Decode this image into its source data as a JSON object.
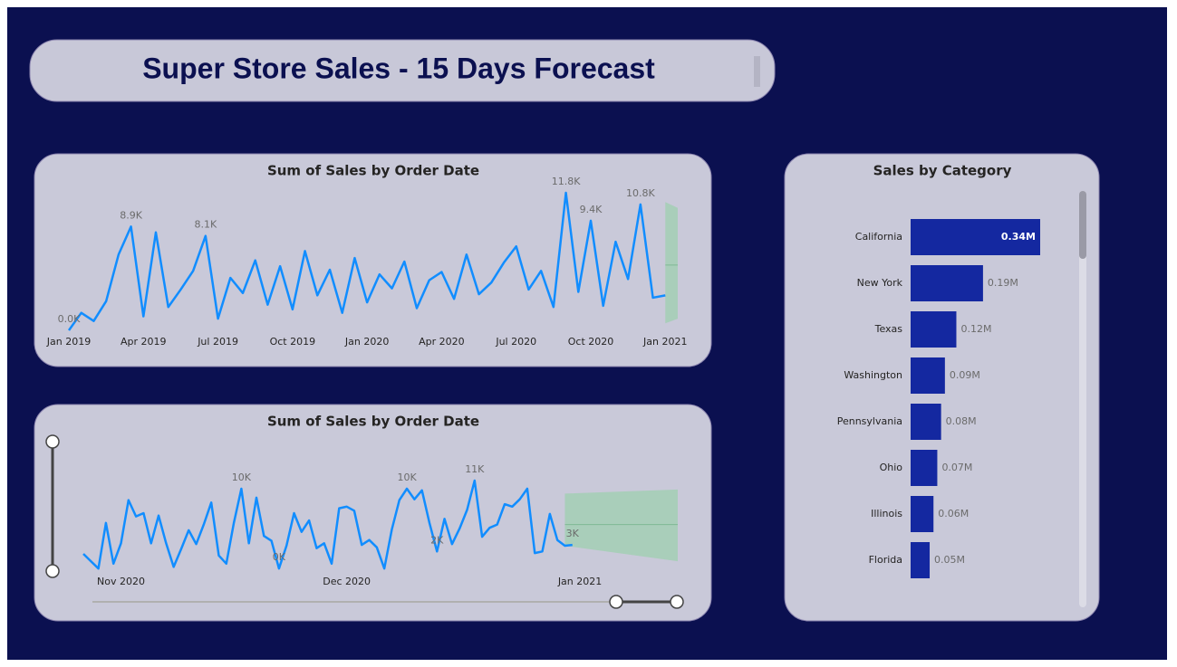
{
  "header": {
    "title": "Super Store Sales - 15 Days Forecast"
  },
  "chart_data": [
    {
      "type": "line",
      "title": "Sum of Sales by Order Date",
      "color": "#118dff",
      "x": [
        0,
        0.5,
        1,
        1.5,
        2,
        2.5,
        3,
        3.5,
        4,
        4.5,
        5,
        5.5,
        6,
        6.5,
        7,
        7.5,
        8,
        8.5,
        9,
        9.5,
        10,
        10.5,
        11,
        11.5,
        12,
        12.5,
        13,
        13.5,
        14,
        14.5,
        15,
        15.5,
        16,
        16.5,
        17,
        17.5,
        18,
        18.5,
        19,
        19.5,
        20,
        20.5,
        21,
        21.5,
        22,
        22.5,
        23,
        23.5,
        24
      ],
      "values": [
        0.0,
        1.5,
        0.8,
        2.5,
        6.5,
        8.9,
        1.2,
        8.4,
        2.0,
        3.5,
        5.1,
        8.1,
        1.0,
        4.5,
        3.2,
        6.0,
        2.2,
        5.5,
        1.8,
        6.8,
        3.0,
        5.2,
        1.5,
        6.2,
        2.4,
        4.8,
        3.6,
        5.9,
        1.9,
        4.3,
        5.0,
        2.7,
        6.5,
        3.1,
        4.1,
        5.8,
        7.2,
        3.5,
        5.1,
        2.0,
        11.8,
        3.3,
        9.4,
        2.1,
        7.6,
        4.4,
        10.8,
        2.8,
        3.0
      ],
      "value_labels": [
        "0.0K",
        null,
        null,
        null,
        null,
        "8.9K",
        null,
        null,
        null,
        null,
        null,
        "8.1K",
        null,
        null,
        null,
        null,
        null,
        null,
        null,
        null,
        null,
        null,
        null,
        null,
        null,
        null,
        null,
        null,
        null,
        null,
        null,
        null,
        null,
        null,
        null,
        null,
        null,
        null,
        null,
        null,
        "11.8K",
        null,
        "9.4K",
        null,
        null,
        null,
        "10.8K",
        null,
        null
      ],
      "xlim": [
        0,
        24.5
      ],
      "xticks": [
        {
          "value": 0,
          "label": "Jan 2019"
        },
        {
          "value": 3,
          "label": "Apr 2019"
        },
        {
          "value": 6,
          "label": "Jul 2019"
        },
        {
          "value": 9,
          "label": "Oct 2019"
        },
        {
          "value": 12,
          "label": "Jan 2020"
        },
        {
          "value": 15,
          "label": "Apr 2020"
        },
        {
          "value": 18,
          "label": "Jul 2020"
        },
        {
          "value": 21,
          "label": "Oct 2020"
        },
        {
          "value": 24,
          "label": "Jan 2021"
        }
      ],
      "forecast": {
        "color": "#a3cfb4",
        "x": [
          24,
          24.5
        ],
        "upper": [
          11.0,
          10.5
        ],
        "lower": [
          0.6,
          1.0
        ],
        "values": [
          5.6,
          5.6
        ]
      }
    },
    {
      "type": "line",
      "title": "Sum of Sales by Order Date",
      "color": "#118dff",
      "x": [
        -5,
        -4,
        -3,
        -2,
        -1,
        0,
        1,
        2,
        3,
        4,
        5,
        6,
        7,
        8,
        9,
        10,
        11,
        12,
        13,
        14,
        15,
        16,
        17,
        18,
        19,
        20,
        21,
        22,
        23,
        24,
        25,
        26,
        27,
        28,
        29,
        30,
        31,
        32,
        33,
        34,
        35,
        36,
        37,
        38,
        39,
        40,
        41,
        42,
        43,
        44,
        45,
        46,
        47,
        48,
        49,
        50,
        51,
        52,
        53,
        54,
        55,
        56,
        57,
        58,
        59,
        60
      ],
      "values": [
        2.0,
        1.1,
        0.2,
        5.8,
        0.8,
        3.3,
        8.6,
        6.6,
        7.0,
        3.3,
        6.7,
        3.3,
        0.4,
        2.6,
        4.9,
        3.2,
        5.6,
        8.3,
        1.8,
        0.8,
        5.8,
        10.0,
        3.3,
        8.9,
        4.2,
        3.6,
        0.2,
        3.0,
        7.0,
        4.7,
        6.1,
        2.7,
        3.3,
        0.8,
        7.6,
        7.8,
        7.3,
        3.1,
        3.7,
        2.8,
        0.2,
        5.0,
        8.6,
        10.0,
        8.7,
        9.8,
        5.8,
        2.3,
        6.3,
        3.2,
        5.1,
        7.4,
        11.0,
        4.1,
        5.2,
        5.6,
        8.1,
        7.8,
        8.7,
        10.0,
        2.1,
        2.3,
        6.9,
        3.7,
        3.0,
        3.1
      ],
      "value_labels": [
        null,
        null,
        null,
        null,
        null,
        null,
        null,
        null,
        null,
        null,
        null,
        null,
        null,
        null,
        null,
        null,
        null,
        null,
        null,
        null,
        null,
        "10K",
        null,
        null,
        null,
        null,
        "0K",
        null,
        null,
        null,
        null,
        null,
        null,
        null,
        null,
        null,
        null,
        null,
        null,
        null,
        null,
        null,
        null,
        "10K",
        null,
        null,
        null,
        "2K",
        null,
        null,
        null,
        null,
        "11K",
        null,
        null,
        null,
        null,
        null,
        null,
        null,
        null,
        null,
        null,
        null,
        null,
        "3K"
      ],
      "xlim": [
        -5,
        74
      ],
      "xticks": [
        {
          "value": 0,
          "label": "Nov 2020"
        },
        {
          "value": 30,
          "label": "Dec 2020"
        },
        {
          "value": 61,
          "label": "Jan 2021"
        }
      ],
      "forecast": {
        "color": "#a3cfb4",
        "x": [
          59,
          74
        ],
        "upper": [
          9.4,
          9.9
        ],
        "lower": [
          3.0,
          1.1
        ],
        "values": [
          5.6,
          5.6
        ]
      }
    },
    {
      "type": "hbar",
      "title": "Sales by Category",
      "color": "#1428a0",
      "categories": [
        "California",
        "New York",
        "Texas",
        "Washington",
        "Pennsylvania",
        "Ohio",
        "Illinois",
        "Florida"
      ],
      "values": [
        0.34,
        0.19,
        0.12,
        0.09,
        0.08,
        0.07,
        0.06,
        0.05
      ],
      "value_labels": [
        "0.34M",
        "0.19M",
        "0.12M",
        "0.09M",
        "0.08M",
        "0.07M",
        "0.06M",
        "0.05M"
      ]
    }
  ]
}
